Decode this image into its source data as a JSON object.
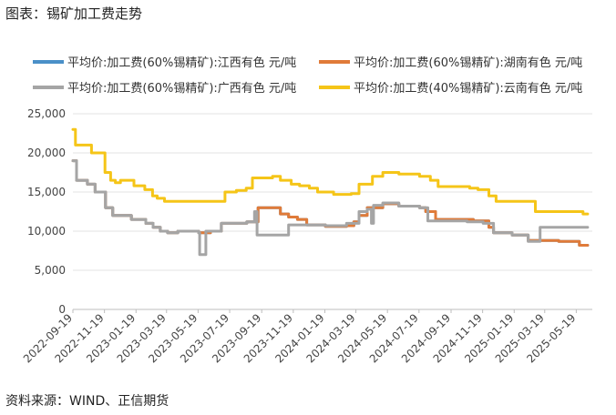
{
  "title": "图表：锡矿加工费走势",
  "source": "资料来源：WIND、正信期货",
  "chart_data": {
    "type": "line",
    "ylim": [
      0,
      25000
    ],
    "yticks": [
      "0",
      "5,000",
      "10,000",
      "15,000",
      "20,000",
      "25,000"
    ],
    "yticks_values": [
      0,
      5000,
      10000,
      15000,
      20000,
      25000
    ],
    "xlim": [
      "2022-09-19",
      "2025-06-19"
    ],
    "xticks": [
      "2022-09-19",
      "2022-11-19",
      "2023-01-19",
      "2023-03-19",
      "2023-05-19",
      "2023-07-19",
      "2023-09-19",
      "2023-11-19",
      "2024-01-19",
      "2024-03-19",
      "2024-05-19",
      "2024-07-19",
      "2024-09-19",
      "2024-11-19",
      "2025-01-19",
      "2025-03-19",
      "2025-05-19"
    ],
    "grid": "horizontal",
    "legend_position": "top",
    "series": [
      {
        "name": "平均价:加工费(60%锡精矿):江西有色 元/吨",
        "color": "#4a90c8",
        "points": [
          [
            "2022-09-19",
            19000
          ],
          [
            "2022-09-26",
            16500
          ],
          [
            "2022-10-17",
            16000
          ],
          [
            "2022-11-01",
            15000
          ],
          [
            "2022-11-21",
            13000
          ],
          [
            "2022-12-05",
            12000
          ],
          [
            "2022-12-20",
            12000
          ],
          [
            "2023-01-10",
            11500
          ],
          [
            "2023-02-07",
            11000
          ],
          [
            "2023-02-21",
            10500
          ],
          [
            "2023-03-07",
            10000
          ],
          [
            "2023-03-21",
            9800
          ],
          [
            "2023-04-10",
            10000
          ],
          [
            "2023-05-20",
            9800
          ],
          [
            "2023-06-12",
            10000
          ],
          [
            "2023-07-03",
            11000
          ],
          [
            "2023-07-24",
            11000
          ],
          [
            "2023-08-21",
            11200
          ],
          [
            "2023-09-12",
            13000
          ],
          [
            "2023-10-10",
            13000
          ],
          [
            "2023-10-25",
            12200
          ],
          [
            "2023-11-10",
            11800
          ],
          [
            "2023-11-27",
            11500
          ],
          [
            "2023-12-15",
            10800
          ],
          [
            "2024-01-20",
            10600
          ],
          [
            "2024-03-01",
            10700
          ],
          [
            "2024-03-15",
            11200
          ],
          [
            "2024-03-25",
            12000
          ],
          [
            "2024-04-10",
            13000
          ],
          [
            "2024-05-10",
            13500
          ],
          [
            "2024-06-10",
            13200
          ],
          [
            "2024-07-20",
            13000
          ],
          [
            "2024-08-01",
            12500
          ],
          [
            "2024-08-20",
            11500
          ],
          [
            "2024-09-20",
            11500
          ],
          [
            "2024-11-01",
            11300
          ],
          [
            "2024-12-01",
            10500
          ],
          [
            "2024-12-10",
            9800
          ],
          [
            "2025-01-15",
            9500
          ],
          [
            "2025-02-15",
            8800
          ],
          [
            "2025-04-15",
            8700
          ],
          [
            "2025-05-25",
            8200
          ],
          [
            "2025-06-10",
            8200
          ]
        ]
      },
      {
        "name": "平均价:加工费(60%锡精矿):湖南有色 元/吨",
        "color": "#e07b39",
        "points": [
          [
            "2022-09-19",
            19000
          ],
          [
            "2022-09-26",
            16500
          ],
          [
            "2022-10-17",
            16000
          ],
          [
            "2022-11-01",
            15000
          ],
          [
            "2022-11-21",
            13000
          ],
          [
            "2022-12-05",
            12000
          ],
          [
            "2022-12-20",
            12000
          ],
          [
            "2023-01-10",
            11500
          ],
          [
            "2023-02-07",
            11000
          ],
          [
            "2023-02-21",
            10500
          ],
          [
            "2023-03-07",
            10000
          ],
          [
            "2023-03-21",
            9800
          ],
          [
            "2023-04-10",
            10000
          ],
          [
            "2023-05-20",
            9800
          ],
          [
            "2023-06-12",
            10000
          ],
          [
            "2023-07-03",
            11000
          ],
          [
            "2023-07-24",
            11000
          ],
          [
            "2023-08-21",
            11200
          ],
          [
            "2023-09-12",
            13000
          ],
          [
            "2023-10-10",
            13000
          ],
          [
            "2023-10-25",
            12200
          ],
          [
            "2023-11-10",
            11800
          ],
          [
            "2023-11-27",
            11500
          ],
          [
            "2023-12-15",
            10800
          ],
          [
            "2024-01-20",
            10600
          ],
          [
            "2024-03-01",
            10700
          ],
          [
            "2024-03-15",
            11200
          ],
          [
            "2024-03-25",
            12000
          ],
          [
            "2024-04-10",
            13000
          ],
          [
            "2024-05-10",
            13500
          ],
          [
            "2024-06-10",
            13200
          ],
          [
            "2024-07-20",
            13000
          ],
          [
            "2024-08-01",
            12500
          ],
          [
            "2024-08-20",
            11500
          ],
          [
            "2024-09-20",
            11500
          ],
          [
            "2024-11-01",
            11300
          ],
          [
            "2024-12-01",
            10500
          ],
          [
            "2024-12-10",
            9800
          ],
          [
            "2025-01-15",
            9500
          ],
          [
            "2025-02-15",
            8800
          ],
          [
            "2025-04-15",
            8700
          ],
          [
            "2025-05-25",
            8200
          ],
          [
            "2025-06-10",
            8200
          ]
        ]
      },
      {
        "name": "平均价:加工费(60%锡精矿):广西有色 元/吨",
        "color": "#a5a5a5",
        "points": [
          [
            "2022-09-19",
            19000
          ],
          [
            "2022-09-26",
            16500
          ],
          [
            "2022-10-17",
            16000
          ],
          [
            "2022-11-01",
            15000
          ],
          [
            "2022-11-21",
            13000
          ],
          [
            "2022-12-05",
            12000
          ],
          [
            "2022-12-20",
            12000
          ],
          [
            "2023-01-10",
            11500
          ],
          [
            "2023-02-07",
            11000
          ],
          [
            "2023-02-21",
            10500
          ],
          [
            "2023-03-07",
            10000
          ],
          [
            "2023-03-21",
            9800
          ],
          [
            "2023-04-10",
            10000
          ],
          [
            "2023-05-20",
            9800
          ],
          [
            "2023-05-22",
            7000
          ],
          [
            "2023-06-02",
            7000
          ],
          [
            "2023-06-03",
            10000
          ],
          [
            "2023-06-20",
            10000
          ],
          [
            "2023-07-03",
            11000
          ],
          [
            "2023-08-21",
            11200
          ],
          [
            "2023-09-05",
            12500
          ],
          [
            "2023-09-10",
            9500
          ],
          [
            "2023-10-25",
            9500
          ],
          [
            "2023-11-10",
            10800
          ],
          [
            "2023-12-15",
            10800
          ],
          [
            "2024-01-20",
            10700
          ],
          [
            "2024-03-01",
            11000
          ],
          [
            "2024-03-25",
            12500
          ],
          [
            "2024-04-10",
            12800
          ],
          [
            "2024-04-18",
            11000
          ],
          [
            "2024-04-22",
            13300
          ],
          [
            "2024-05-10",
            13600
          ],
          [
            "2024-06-10",
            13200
          ],
          [
            "2024-07-20",
            13000
          ],
          [
            "2024-08-05",
            11300
          ],
          [
            "2024-10-20",
            11200
          ],
          [
            "2024-11-20",
            11000
          ],
          [
            "2024-12-10",
            9800
          ],
          [
            "2025-01-15",
            9500
          ],
          [
            "2025-02-15",
            8700
          ],
          [
            "2025-03-05",
            8700
          ],
          [
            "2025-03-10",
            10500
          ],
          [
            "2025-04-15",
            10500
          ],
          [
            "2025-06-10",
            10500
          ]
        ]
      },
      {
        "name": "平均价:加工费(40%锡精矿):云南有色 元/吨",
        "color": "#f5c518",
        "points": [
          [
            "2022-09-19",
            23000
          ],
          [
            "2022-09-24",
            21000
          ],
          [
            "2022-10-20",
            21000
          ],
          [
            "2022-10-25",
            20000
          ],
          [
            "2022-11-10",
            20000
          ],
          [
            "2022-11-20",
            17500
          ],
          [
            "2022-12-01",
            16500
          ],
          [
            "2022-12-10",
            16200
          ],
          [
            "2022-12-20",
            16500
          ],
          [
            "2023-01-15",
            15800
          ],
          [
            "2023-02-05",
            15300
          ],
          [
            "2023-02-20",
            14500
          ],
          [
            "2023-03-01",
            14200
          ],
          [
            "2023-03-15",
            13800
          ],
          [
            "2023-04-10",
            13800
          ],
          [
            "2023-06-20",
            13800
          ],
          [
            "2023-07-10",
            15000
          ],
          [
            "2023-08-01",
            15200
          ],
          [
            "2023-08-20",
            15500
          ],
          [
            "2023-09-01",
            16800
          ],
          [
            "2023-10-10",
            17000
          ],
          [
            "2023-10-25",
            16500
          ],
          [
            "2023-11-15",
            16000
          ],
          [
            "2023-12-01",
            15800
          ],
          [
            "2023-12-20",
            15500
          ],
          [
            "2024-01-05",
            15000
          ],
          [
            "2024-02-05",
            14700
          ],
          [
            "2024-03-10",
            14800
          ],
          [
            "2024-03-25",
            16000
          ],
          [
            "2024-04-20",
            17000
          ],
          [
            "2024-05-10",
            17500
          ],
          [
            "2024-06-10",
            17300
          ],
          [
            "2024-07-20",
            17000
          ],
          [
            "2024-08-10",
            16500
          ],
          [
            "2024-08-25",
            15700
          ],
          [
            "2024-10-25",
            15500
          ],
          [
            "2024-11-10",
            15300
          ],
          [
            "2024-12-01",
            14500
          ],
          [
            "2024-12-15",
            13800
          ],
          [
            "2025-02-15",
            13800
          ],
          [
            "2025-03-01",
            12500
          ],
          [
            "2025-05-25",
            12500
          ],
          [
            "2025-06-01",
            12200
          ],
          [
            "2025-06-10",
            12200
          ]
        ]
      }
    ]
  }
}
